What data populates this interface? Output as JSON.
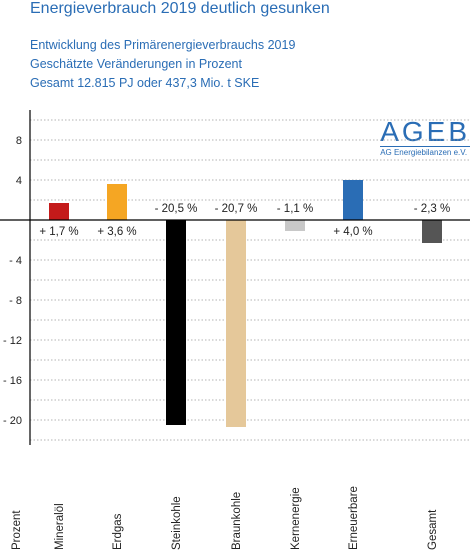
{
  "title": "Energieverbrauch 2019 deutlich gesunken",
  "subtitle_lines": [
    "Entwicklung des Primärenergieverbrauchs 2019",
    "Geschätzte Veränderungen in Prozent",
    "Gesamt 12.815 PJ oder 437,3 Mio. t SKE"
  ],
  "logo": {
    "main": "AGEB",
    "sub": "AG Energiebilanzen e.V."
  },
  "chart_data": {
    "type": "bar",
    "xlabel": "Prozent",
    "ylim": [
      -22.5,
      10.5
    ],
    "yticks": [
      8,
      4,
      -4,
      -8,
      -12,
      -16,
      -20
    ],
    "ytick_labels": [
      "8",
      "4",
      "- 4",
      "- 8",
      "- 12",
      "- 16",
      "- 20"
    ],
    "categories": [
      "Mineralöl",
      "Erdgas",
      "Steinkohle",
      "Braunkohle",
      "Kernenergie",
      "Erneuerbare",
      "Gesamt"
    ],
    "values": [
      1.7,
      3.6,
      -20.5,
      -20.7,
      -1.1,
      4.0,
      -2.3
    ],
    "value_labels": [
      "+ 1,7 %",
      "+ 3,6 %",
      "- 20,5 %",
      "- 20,7 %",
      "- 1,1 %",
      "+ 4,0 %",
      "- 2,3 %"
    ],
    "colors": [
      "#c41a1a",
      "#f5a623",
      "#000000",
      "#e5c89a",
      "#c8c8c8",
      "#2a6db5",
      "#555555"
    ],
    "grid": true
  }
}
